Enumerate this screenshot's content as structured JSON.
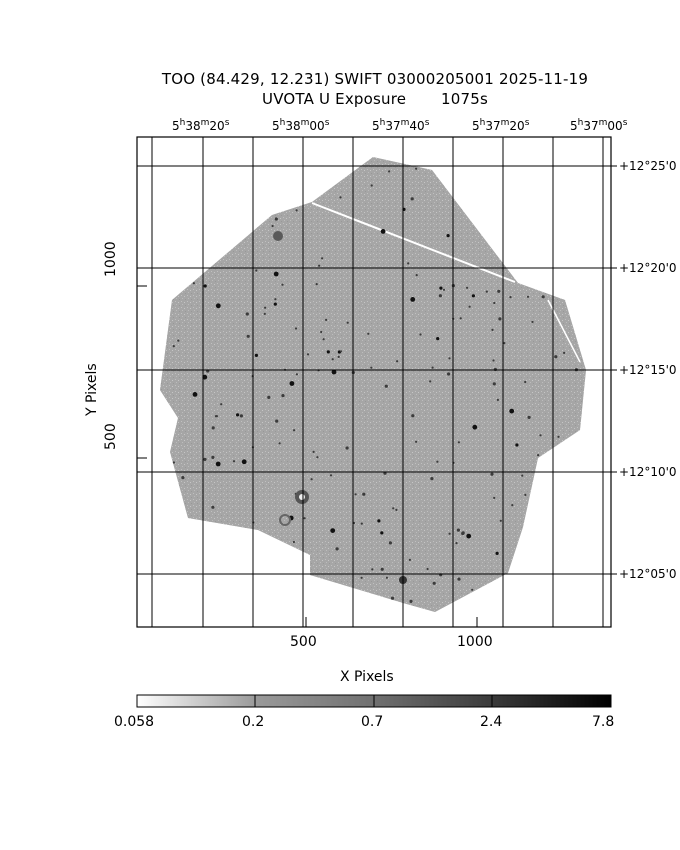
{
  "header": {
    "line1": "TOO (84.429, 12.231) SWIFT 03000205001 2025-11-19",
    "line2": "UVOTA U Exposure       1075s"
  },
  "axes": {
    "x_label": "X Pixels",
    "y_label": "Y Pixels",
    "x_ticks": [
      "500",
      "1000"
    ],
    "y_ticks": [
      "500",
      "1000"
    ],
    "ra_ticks": [
      {
        "h": "5",
        "m": "38",
        "s": "20"
      },
      {
        "h": "5",
        "m": "38",
        "s": "00"
      },
      {
        "h": "5",
        "m": "37",
        "s": "40"
      },
      {
        "h": "5",
        "m": "37",
        "s": "20"
      },
      {
        "h": "5",
        "m": "37",
        "s": "00"
      }
    ],
    "dec_ticks": [
      "+12°25'0",
      "+12°20'0",
      "+12°15'0",
      "+12°10'0",
      "+12°05'0"
    ]
  },
  "colorbar": {
    "labels": [
      "0.058",
      "0.2",
      "0.7",
      "2.4",
      "7.8"
    ],
    "scale": "log"
  }
}
